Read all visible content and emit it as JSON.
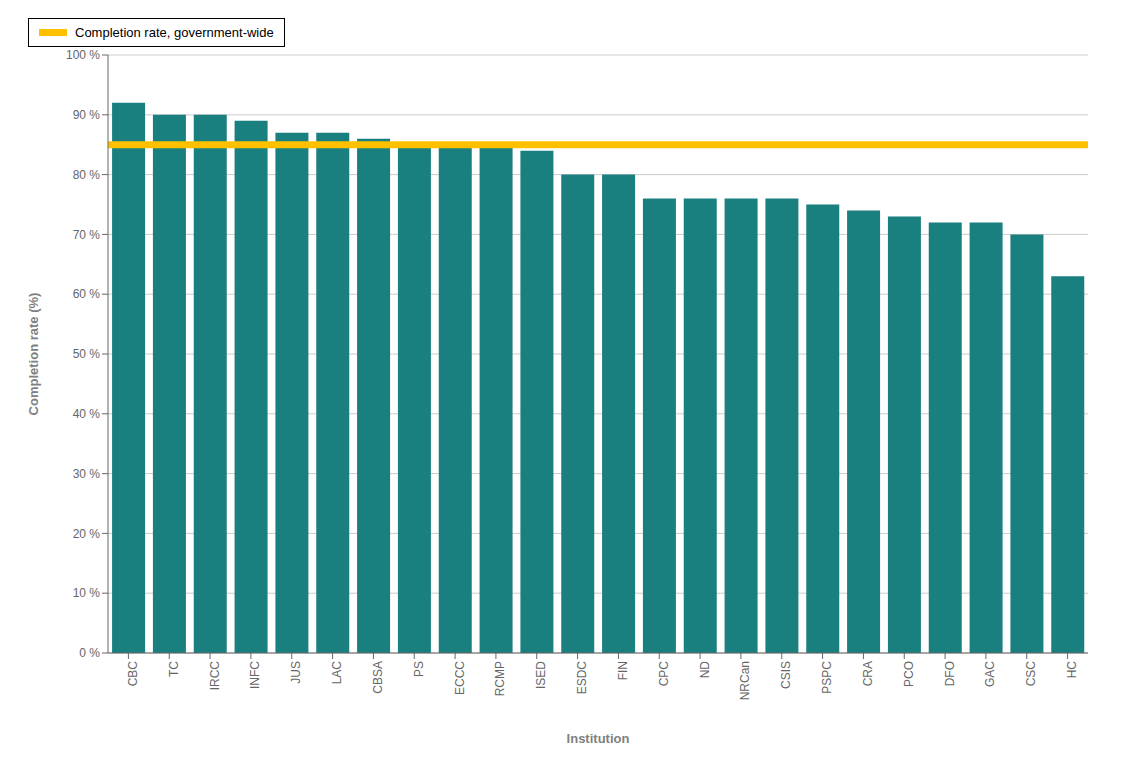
{
  "chart_data": {
    "type": "bar",
    "categories": [
      "CBC",
      "TC",
      "IRCC",
      "INFC",
      "JUS",
      "LAC",
      "CBSA",
      "PS",
      "ECCC",
      "RCMP",
      "ISED",
      "ESDC",
      "FIN",
      "CPC",
      "ND",
      "NRCan",
      "CSIS",
      "PSPC",
      "CRA",
      "PCO",
      "DFO",
      "GAC",
      "CSC",
      "HC"
    ],
    "values": [
      92,
      90,
      90,
      89,
      87,
      87,
      86,
      85,
      85,
      85,
      84,
      80,
      80,
      76,
      76,
      76,
      76,
      75,
      74,
      73,
      72,
      72,
      70,
      63
    ],
    "color": "#1a7f7f",
    "xlabel": "Institution",
    "ylabel": "Completion rate (%)",
    "ylim": [
      0,
      100
    ],
    "yticks": [
      {
        "value": 0,
        "label": "0 %"
      },
      {
        "value": 10,
        "label": "10 %"
      },
      {
        "value": 20,
        "label": "20 %"
      },
      {
        "value": 30,
        "label": "30 %"
      },
      {
        "value": 40,
        "label": "40 %"
      },
      {
        "value": 50,
        "label": "50 %"
      },
      {
        "value": 60,
        "label": "60 %"
      },
      {
        "value": 70,
        "label": "70 %"
      },
      {
        "value": 80,
        "label": "80 %"
      },
      {
        "value": 90,
        "label": "90 %"
      },
      {
        "value": 100,
        "label": "100 %"
      }
    ],
    "grid": true,
    "legend": "upper right",
    "reference_line": {
      "value": 85,
      "label": "Completion rate, government-wide",
      "color": "#FFC000"
    }
  }
}
